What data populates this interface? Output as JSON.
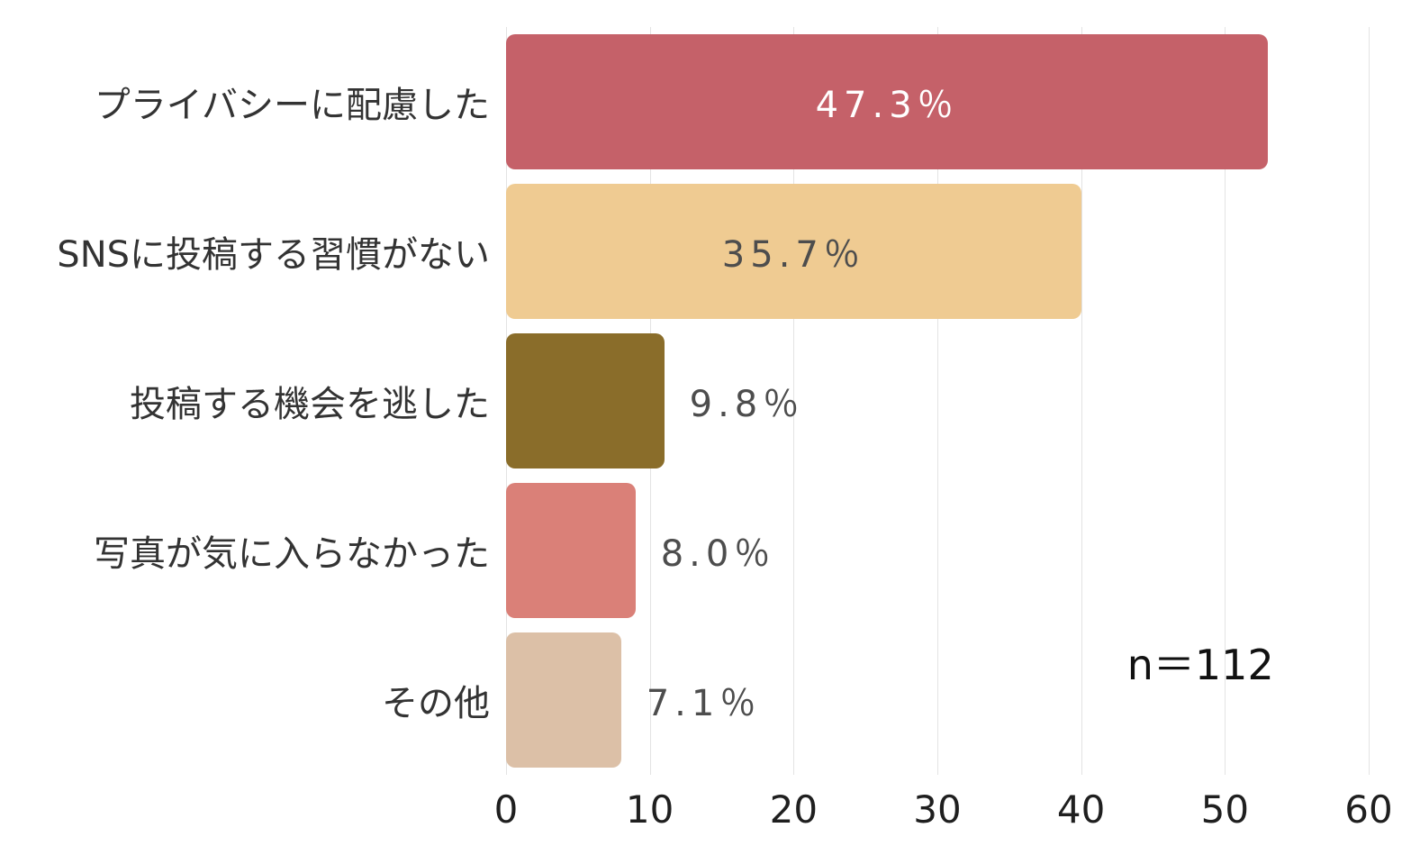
{
  "chart_data": {
    "type": "bar",
    "orientation": "horizontal",
    "title": "",
    "xlabel": "",
    "ylabel": "",
    "categories": [
      "プライバシーに配慮した",
      "SNSに投稿する習慣がない",
      "投稿する機会を逃した",
      "写真が気に入らなかった",
      "その他"
    ],
    "values": [
      53,
      40,
      11,
      9,
      8
    ],
    "value_labels": [
      "47.3％",
      "35.7％",
      "9.8％",
      "8.0％",
      "7.1％"
    ],
    "label_inside": [
      true,
      true,
      false,
      false,
      false
    ],
    "label_colors": [
      "#ffffff",
      "#4d4d4d",
      "#4d4d4d",
      "#4d4d4d",
      "#4d4d4d"
    ],
    "bar_colors": [
      "#c56169",
      "#efcb92",
      "#8a6d2a",
      "#da8078",
      "#dcc0a7"
    ],
    "x_ticks": [
      0,
      10,
      20,
      30,
      40,
      50,
      60
    ],
    "xlim": [
      0,
      60
    ],
    "grid": true,
    "legend": "none",
    "annotation": "n＝112",
    "gridline_color": "#e3e3e3"
  }
}
